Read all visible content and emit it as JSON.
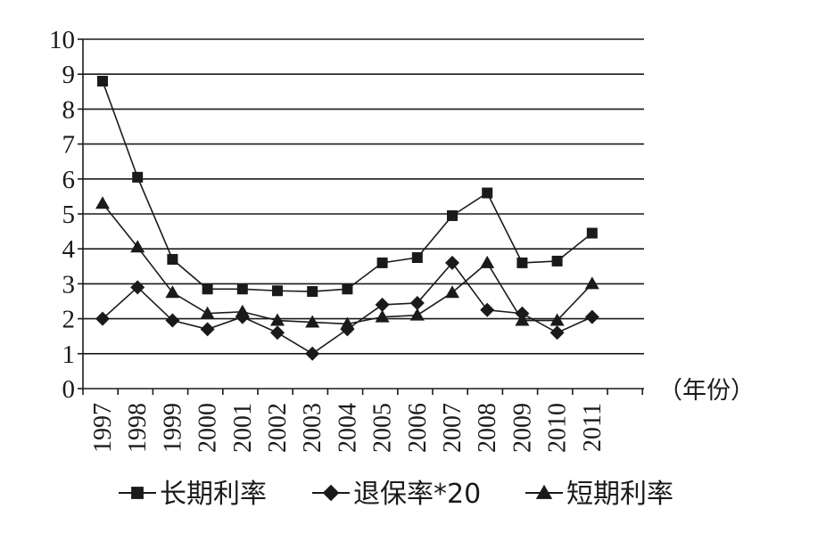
{
  "chart_data": {
    "type": "line",
    "categories": [
      "1997",
      "1998",
      "1999",
      "2000",
      "2001",
      "2002",
      "2003",
      "2004",
      "2005",
      "2006",
      "2007",
      "2008",
      "2009",
      "2010",
      "2011"
    ],
    "series": [
      {
        "name": "长期利率",
        "marker": "square",
        "values": [
          8.8,
          6.05,
          3.7,
          2.85,
          2.85,
          2.8,
          2.78,
          2.85,
          3.6,
          3.75,
          4.95,
          5.6,
          3.6,
          3.65,
          4.45
        ]
      },
      {
        "name": "退保率*20",
        "marker": "diamond",
        "values": [
          2.0,
          2.9,
          1.95,
          1.7,
          2.05,
          1.6,
          1.0,
          1.7,
          2.4,
          2.45,
          3.6,
          2.25,
          2.15,
          1.6,
          2.05
        ]
      },
      {
        "name": "短期利率",
        "marker": "triangle",
        "values": [
          5.3,
          4.05,
          2.75,
          2.15,
          2.2,
          1.95,
          1.9,
          1.85,
          2.05,
          2.1,
          2.75,
          3.6,
          1.95,
          1.95,
          3.0
        ]
      }
    ],
    "x_unit_label": "（年份）",
    "y_ticks": [
      "0",
      "1",
      "2",
      "3",
      "4",
      "5",
      "6",
      "7",
      "8",
      "9",
      "10"
    ],
    "ylim": [
      0,
      10
    ],
    "grid": "horizontal",
    "legend_position": "bottom",
    "colors": {
      "line": "#1a1a1a",
      "grid": "#1a1a1a"
    }
  }
}
